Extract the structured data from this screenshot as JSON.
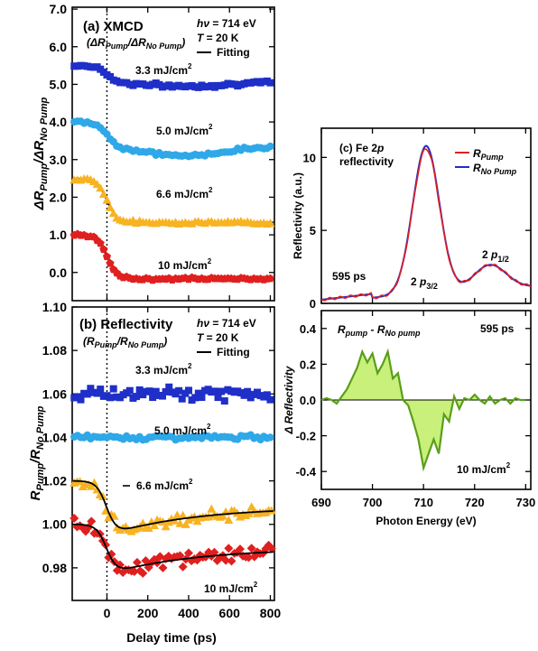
{
  "colors": {
    "blue": "#1f2fc8",
    "cyan": "#2ea8e8",
    "orange": "#f7b321",
    "red": "#e01f1f",
    "green": "#5a9e1a",
    "greenFill": "#c8f07a",
    "black": "#000000"
  },
  "labels": {
    "shared_x_label": "Delay time (ps)",
    "a_title": "(a) XMCD",
    "a_sub": "(ΔR",
    "a_sub_pump": "Pump",
    "a_sub_mid": "/ΔR",
    "a_sub_nopump": "No Pump",
    "a_sub_end": ")",
    "a_ylabel_main": "ΔR",
    "a_ylabel_pump": "Pump",
    "a_ylabel_mid": "/ΔR",
    "a_ylabel_nopump": "No Pump",
    "b_title": "(b) Reflectivity",
    "b_sub": "(R",
    "b_sub_pump": "Pump",
    "b_sub_mid": "/R",
    "b_sub_nopump": "No Pump",
    "b_sub_end": ")",
    "b_ylabel_main": "R",
    "b_ylabel_pump": "Pump",
    "b_ylabel_mid": "/R",
    "b_ylabel_nopump": "No Pump",
    "hv_h": "h",
    "hv_nu": "ν",
    "hv_rest": " = 714 eV",
    "temp_T": "T",
    "temp_rest": " = 20 K",
    "fitting": "Fitting",
    "flu_33": "3.3 mJ/cm",
    "flu_50": "5.0 mJ/cm",
    "flu_66": "6.6 mJ/cm",
    "flu_10": "10 mJ/cm",
    "sq": "2",
    "c_title1": "(c) Fe 2",
    "c_title_p": "p",
    "c_title2": "reflectivity",
    "c_leg_R": "R",
    "c_leg_pump": "Pump",
    "c_leg_nopump": "No Pump",
    "c_ylabel": "Reflectivity (a.u.)",
    "c_595": "595 ps",
    "c_p32_a": "2 ",
    "c_p32_p": "p",
    "c_p32_sub": "3/2",
    "c_p12_a": "2 ",
    "c_p12_p": "p",
    "c_p12_sub": "1/2",
    "d_R": "R",
    "d_pump": "pump",
    "d_minus": " - R",
    "d_nopump": "No pump",
    "d_595": "595 ps",
    "d_ylabel": "Δ Reflectivity",
    "d_flu": "10 mJ/cm",
    "d_xlabel": "Photon Energy (eV)"
  },
  "chart_data": [
    {
      "id": "a",
      "type": "scatter",
      "title": "(a) XMCD",
      "subtitle": "(ΔR_Pump/ΔR_No Pump)",
      "xlabel": "Delay time (ps)",
      "ylabel": "ΔR_Pump/ΔR_No Pump",
      "xlim": [
        -170,
        820
      ],
      "ylim": [
        -0.75,
        7.05
      ],
      "yticks": [
        0.0,
        1.0,
        2.0,
        3.0,
        4.0,
        5.0,
        6.0,
        7.0
      ],
      "yticklabels": [
        "0.0",
        "1.0",
        "2.0",
        "3.0",
        "4.0",
        "5.0",
        "6.0",
        "7.0"
      ],
      "xticks": [
        0,
        200,
        400,
        600,
        800
      ],
      "time_zero_line": 0,
      "annotations": [
        "hν = 714 eV",
        "T = 20 K"
      ],
      "legend": [
        "Fitting"
      ],
      "series": [
        {
          "name": "3.3 mJ/cm2",
          "marker": "square",
          "color": "blue",
          "pre": 5.5,
          "post": 5.05,
          "sag": 0.1,
          "noise": 0.07,
          "has_fit": false
        },
        {
          "name": "5.0 mJ/cm2",
          "marker": "circle",
          "color": "cyan",
          "pre": 4.0,
          "post": 3.35,
          "sag": 0.25,
          "noise": 0.06,
          "has_fit": true
        },
        {
          "name": "6.6 mJ/cm2",
          "marker": "triangle",
          "color": "orange",
          "pre": 2.5,
          "post": 1.33,
          "sag": 0.0,
          "noise": 0.06,
          "has_fit": true
        },
        {
          "name": "10 mJ/cm2",
          "marker": "pentagon",
          "color": "red",
          "pre": 1.0,
          "post": -0.17,
          "sag": 0.0,
          "noise": 0.05,
          "has_fit": true
        }
      ]
    },
    {
      "id": "b",
      "type": "scatter",
      "title": "(b) Reflectivity",
      "subtitle": "(R_Pump/R_No Pump)",
      "xlabel": "Delay time (ps)",
      "ylabel": "R_Pump/R_No Pump",
      "xlim": [
        -170,
        820
      ],
      "ylim": [
        0.965,
        1.1
      ],
      "yticks": [
        0.98,
        1.0,
        1.02,
        1.04,
        1.06,
        1.08,
        1.1
      ],
      "yticklabels": [
        "0.98",
        "1.00",
        "1.02",
        "1.04",
        "1.06",
        "1.08",
        "1.10"
      ],
      "xticks": [
        0,
        200,
        400,
        600,
        800
      ],
      "xticklabels": [
        "0",
        "200",
        "400",
        "600",
        "800"
      ],
      "time_zero_line": 0,
      "annotations": [
        "hν = 714 eV",
        "T = 20 K"
      ],
      "legend": [
        "Fitting"
      ],
      "series": [
        {
          "name": "3.3 mJ/cm2",
          "marker": "square",
          "color": "blue",
          "base": 1.06,
          "noise": 0.004
        },
        {
          "name": "5.0 mJ/cm2",
          "marker": "circle",
          "color": "cyan",
          "base": 1.04,
          "noise": 0.0015
        },
        {
          "name": "6.6 mJ/cm2",
          "marker": "triangle",
          "color": "orange",
          "pre": 1.02,
          "drop_to": 0.995,
          "recover_to": 1.008,
          "noise": 0.004
        },
        {
          "name": "10 mJ/cm2",
          "marker": "diamond",
          "color": "red",
          "pre": 1.0,
          "drop_to": 0.977,
          "recover_to": 0.989,
          "noise": 0.005
        }
      ]
    },
    {
      "id": "c",
      "type": "line",
      "title": "(c) Fe 2p reflectivity",
      "xlabel": "",
      "ylabel": "Reflectivity (a.u.)",
      "xlim": [
        690,
        731
      ],
      "ylim": [
        0,
        12
      ],
      "yticks": [
        0,
        5,
        10
      ],
      "xticks": [
        690,
        700,
        710,
        720,
        730
      ],
      "annotations": [
        "595 ps",
        "2 p3/2",
        "2 p1/2"
      ],
      "series": [
        {
          "name": "R_Pump",
          "color": "red",
          "peak": 9.95
        },
        {
          "name": "R_No Pump",
          "color": "blue",
          "peak": 10.15
        }
      ],
      "peak_center": 710.5,
      "secondary_peak": 723
    },
    {
      "id": "d",
      "type": "area",
      "title": "R_pump - R_No pump",
      "xlabel": "Photon Energy (eV)",
      "ylabel": "Δ Reflectivity",
      "xlim": [
        690,
        731
      ],
      "ylim": [
        -0.5,
        0.5
      ],
      "yticks": [
        -0.4,
        -0.2,
        0.0,
        0.2,
        0.4
      ],
      "yticklabels": [
        "-0.4",
        "-0.2",
        "0.0",
        "0.2",
        "0.4"
      ],
      "xticks": [
        690,
        700,
        710,
        720,
        730
      ],
      "xticklabels": [
        "690",
        "700",
        "710",
        "720",
        "730"
      ],
      "annotations": [
        "595 ps",
        "10 mJ/cm2"
      ],
      "x": [
        690,
        691,
        692,
        693,
        694,
        695,
        696,
        697,
        698,
        699,
        700,
        701,
        702,
        703,
        704,
        705,
        706,
        707,
        708,
        709,
        710,
        711,
        712,
        713,
        714,
        715,
        716,
        717,
        718,
        719,
        720,
        721,
        722,
        723,
        724,
        725,
        726,
        727,
        728,
        729,
        730
      ],
      "values": [
        0.0,
        0.01,
        0.0,
        -0.02,
        0.02,
        0.06,
        0.12,
        0.18,
        0.27,
        0.21,
        0.26,
        0.15,
        0.2,
        0.27,
        0.12,
        0.15,
        0.0,
        -0.03,
        -0.12,
        -0.22,
        -0.38,
        -0.3,
        -0.22,
        -0.3,
        -0.08,
        -0.12,
        0.02,
        -0.05,
        0.01,
        0.0,
        0.03,
        0.0,
        -0.02,
        0.02,
        -0.02,
        0.0,
        0.01,
        -0.02,
        0.01,
        0.0,
        0.0
      ]
    }
  ]
}
